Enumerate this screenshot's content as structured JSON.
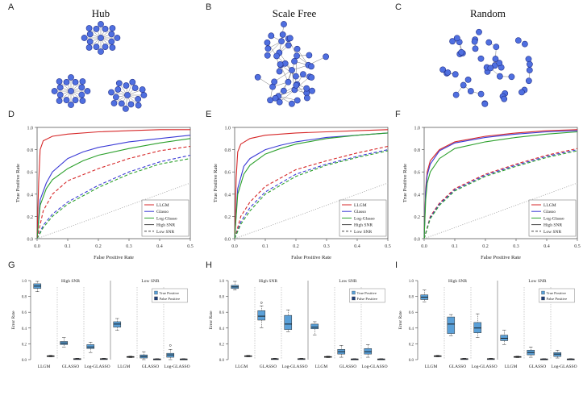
{
  "figure": {
    "panel_labels": [
      "A",
      "B",
      "C",
      "D",
      "E",
      "F",
      "G",
      "H",
      "I"
    ],
    "network_titles": [
      "Hub",
      "Scale Free",
      "Random"
    ],
    "node_color": "#4f6fe0",
    "node_edge_color": "#23318a",
    "edge_color": "#777777"
  },
  "chart_data": [
    {
      "panel": "D",
      "type": "line",
      "xlabel": "False Positive Rate",
      "ylabel": "True Positive Rate",
      "xlim": [
        0,
        0.5
      ],
      "ylim": [
        0,
        1.0
      ],
      "xticks": [
        "0.0",
        "0.1",
        "0.2",
        "0.3",
        "0.4",
        "0.5"
      ],
      "yticks": [
        "0.0",
        "0.2",
        "0.4",
        "0.6",
        "0.8",
        "1.0"
      ],
      "legend": [
        "LLGM",
        "Glasso",
        "Log-Glasso",
        "High SNR",
        "Low SNR"
      ],
      "series": [
        {
          "name": "LLGM high",
          "color": "#d62728",
          "dash": "solid",
          "x": [
            0,
            0.005,
            0.01,
            0.02,
            0.05,
            0.1,
            0.2,
            0.3,
            0.4,
            0.5
          ],
          "y": [
            0,
            0.5,
            0.8,
            0.88,
            0.92,
            0.94,
            0.96,
            0.97,
            0.98,
            0.98
          ]
        },
        {
          "name": "Glasso high",
          "color": "#3b3bd6",
          "dash": "solid",
          "x": [
            0,
            0.01,
            0.03,
            0.05,
            0.1,
            0.15,
            0.2,
            0.3,
            0.4,
            0.5
          ],
          "y": [
            0,
            0.35,
            0.5,
            0.6,
            0.72,
            0.78,
            0.82,
            0.87,
            0.9,
            0.93
          ]
        },
        {
          "name": "Log-Glasso high",
          "color": "#2ca02c",
          "dash": "solid",
          "x": [
            0,
            0.01,
            0.03,
            0.05,
            0.1,
            0.15,
            0.2,
            0.3,
            0.4,
            0.5
          ],
          "y": [
            0,
            0.3,
            0.45,
            0.53,
            0.63,
            0.7,
            0.75,
            0.81,
            0.86,
            0.9
          ]
        },
        {
          "name": "LLGM low",
          "color": "#d62728",
          "dash": "dashed",
          "x": [
            0,
            0.02,
            0.05,
            0.1,
            0.2,
            0.3,
            0.4,
            0.5
          ],
          "y": [
            0,
            0.25,
            0.4,
            0.52,
            0.63,
            0.72,
            0.79,
            0.83
          ]
        },
        {
          "name": "Glasso low",
          "color": "#3b3bd6",
          "dash": "dashed",
          "x": [
            0,
            0.02,
            0.05,
            0.1,
            0.2,
            0.3,
            0.4,
            0.5
          ],
          "y": [
            0,
            0.12,
            0.22,
            0.33,
            0.48,
            0.6,
            0.69,
            0.75
          ]
        },
        {
          "name": "Log-Glasso low",
          "color": "#2ca02c",
          "dash": "dashed",
          "x": [
            0,
            0.02,
            0.05,
            0.1,
            0.2,
            0.3,
            0.4,
            0.5
          ],
          "y": [
            0,
            0.1,
            0.2,
            0.31,
            0.46,
            0.58,
            0.67,
            0.72
          ]
        },
        {
          "name": "Random",
          "color": "#999999",
          "dash": "dotted",
          "x": [
            0,
            0.5
          ],
          "y": [
            0,
            0.5
          ]
        }
      ]
    },
    {
      "panel": "E",
      "type": "line",
      "xlabel": "False Positive Rate",
      "ylabel": "True Positive Rate",
      "xlim": [
        0,
        0.5
      ],
      "ylim": [
        0,
        1.0
      ],
      "xticks": [
        "0.0",
        "0.1",
        "0.2",
        "0.3",
        "0.4",
        "0.5"
      ],
      "yticks": [
        "0.0",
        "0.2",
        "0.4",
        "0.6",
        "0.8",
        "1.0"
      ],
      "legend": [
        "LLGM",
        "Glasso",
        "Log-Glasso",
        "High SNR",
        "Low SNR"
      ],
      "series": [
        {
          "name": "LLGM high",
          "color": "#d62728",
          "dash": "solid",
          "x": [
            0,
            0.005,
            0.01,
            0.02,
            0.05,
            0.1,
            0.2,
            0.3,
            0.4,
            0.5
          ],
          "y": [
            0,
            0.55,
            0.78,
            0.85,
            0.9,
            0.93,
            0.95,
            0.96,
            0.97,
            0.98
          ]
        },
        {
          "name": "Glasso high",
          "color": "#3b3bd6",
          "dash": "solid",
          "x": [
            0,
            0.01,
            0.03,
            0.05,
            0.1,
            0.15,
            0.2,
            0.3,
            0.4,
            0.5
          ],
          "y": [
            0,
            0.45,
            0.65,
            0.72,
            0.8,
            0.84,
            0.87,
            0.91,
            0.93,
            0.95
          ]
        },
        {
          "name": "Log-Glasso high",
          "color": "#2ca02c",
          "dash": "solid",
          "x": [
            0,
            0.01,
            0.03,
            0.05,
            0.1,
            0.15,
            0.2,
            0.3,
            0.4,
            0.5
          ],
          "y": [
            0,
            0.4,
            0.58,
            0.66,
            0.76,
            0.81,
            0.85,
            0.9,
            0.93,
            0.95
          ]
        },
        {
          "name": "LLGM low",
          "color": "#d62728",
          "dash": "dashed",
          "x": [
            0,
            0.02,
            0.05,
            0.1,
            0.2,
            0.3,
            0.4,
            0.5
          ],
          "y": [
            0,
            0.2,
            0.33,
            0.47,
            0.62,
            0.7,
            0.77,
            0.83
          ]
        },
        {
          "name": "Glasso low",
          "color": "#3b3bd6",
          "dash": "dashed",
          "x": [
            0,
            0.02,
            0.05,
            0.1,
            0.2,
            0.3,
            0.4,
            0.5
          ],
          "y": [
            0,
            0.15,
            0.28,
            0.42,
            0.58,
            0.67,
            0.74,
            0.8
          ]
        },
        {
          "name": "Log-Glasso low",
          "color": "#2ca02c",
          "dash": "dashed",
          "x": [
            0,
            0.02,
            0.05,
            0.1,
            0.2,
            0.3,
            0.4,
            0.5
          ],
          "y": [
            0,
            0.13,
            0.25,
            0.4,
            0.56,
            0.66,
            0.73,
            0.79
          ]
        },
        {
          "name": "Random",
          "color": "#999999",
          "dash": "dotted",
          "x": [
            0,
            0.5
          ],
          "y": [
            0,
            0.5
          ]
        }
      ]
    },
    {
      "panel": "F",
      "type": "line",
      "xlabel": "False Positive Rate",
      "ylabel": "True Positive Rate",
      "xlim": [
        0,
        0.5
      ],
      "ylim": [
        0,
        1.0
      ],
      "xticks": [
        "0.0",
        "0.1",
        "0.2",
        "0.3",
        "0.4",
        "0.5"
      ],
      "yticks": [
        "0.0",
        "0.2",
        "0.4",
        "0.6",
        "0.8",
        "1.0"
      ],
      "legend": [
        "LLGM",
        "Glasso",
        "Log-Glasso",
        "High SNR",
        "Low SNR"
      ],
      "series": [
        {
          "name": "LLGM high",
          "color": "#d62728",
          "dash": "solid",
          "x": [
            0,
            0.005,
            0.01,
            0.02,
            0.05,
            0.1,
            0.2,
            0.3,
            0.4,
            0.5
          ],
          "y": [
            0,
            0.45,
            0.6,
            0.7,
            0.8,
            0.87,
            0.92,
            0.95,
            0.97,
            0.98
          ]
        },
        {
          "name": "Glasso high",
          "color": "#3b3bd6",
          "dash": "solid",
          "x": [
            0,
            0.005,
            0.01,
            0.02,
            0.05,
            0.1,
            0.2,
            0.3,
            0.4,
            0.5
          ],
          "y": [
            0,
            0.42,
            0.57,
            0.67,
            0.79,
            0.86,
            0.91,
            0.94,
            0.96,
            0.97
          ]
        },
        {
          "name": "Log-Glasso high",
          "color": "#2ca02c",
          "dash": "solid",
          "x": [
            0,
            0.005,
            0.01,
            0.02,
            0.05,
            0.1,
            0.2,
            0.3,
            0.4,
            0.5
          ],
          "y": [
            0,
            0.35,
            0.5,
            0.6,
            0.72,
            0.81,
            0.87,
            0.91,
            0.94,
            0.96
          ]
        },
        {
          "name": "LLGM low",
          "color": "#d62728",
          "dash": "dashed",
          "x": [
            0,
            0.02,
            0.05,
            0.1,
            0.2,
            0.3,
            0.4,
            0.5
          ],
          "y": [
            0,
            0.2,
            0.32,
            0.45,
            0.58,
            0.67,
            0.75,
            0.81
          ]
        },
        {
          "name": "Glasso low",
          "color": "#3b3bd6",
          "dash": "dashed",
          "x": [
            0,
            0.02,
            0.05,
            0.1,
            0.2,
            0.3,
            0.4,
            0.5
          ],
          "y": [
            0,
            0.19,
            0.31,
            0.44,
            0.57,
            0.66,
            0.74,
            0.8
          ]
        },
        {
          "name": "Log-Glasso low",
          "color": "#2ca02c",
          "dash": "dashed",
          "x": [
            0,
            0.02,
            0.05,
            0.1,
            0.2,
            0.3,
            0.4,
            0.5
          ],
          "y": [
            0,
            0.18,
            0.3,
            0.43,
            0.56,
            0.65,
            0.73,
            0.79
          ]
        },
        {
          "name": "Random",
          "color": "#999999",
          "dash": "dotted",
          "x": [
            0,
            0.5
          ],
          "y": [
            0,
            0.5
          ]
        }
      ]
    },
    {
      "panel": "G",
      "type": "box",
      "ylabel": "Error Rate",
      "ylim": [
        0,
        1.0
      ],
      "yticks": [
        "0.0",
        "0.2",
        "0.4",
        "0.6",
        "0.8",
        "1.0"
      ],
      "group_labels": [
        "High SNR",
        "Low SNR"
      ],
      "categories": [
        "LLGM",
        "GLASSO",
        "Log-GLASSO",
        "LLGM",
        "GLASSO",
        "Log-GLASSO"
      ],
      "legend": [
        "True Positive",
        "False Positive"
      ],
      "tp_color": "#5aa0d8",
      "fp_color": "#1f3f78",
      "boxes": [
        {
          "kind": "tp",
          "min": 0.86,
          "q1": 0.9,
          "med": 0.93,
          "q3": 0.96,
          "max": 0.99,
          "out": []
        },
        {
          "kind": "fp",
          "min": 0.035,
          "q1": 0.04,
          "med": 0.045,
          "q3": 0.05,
          "max": 0.055,
          "out": []
        },
        {
          "kind": "tp",
          "min": 0.16,
          "q1": 0.19,
          "med": 0.21,
          "q3": 0.23,
          "max": 0.28,
          "out": []
        },
        {
          "kind": "fp",
          "min": 0.005,
          "q1": 0.008,
          "med": 0.01,
          "q3": 0.013,
          "max": 0.017,
          "out": []
        },
        {
          "kind": "tp",
          "min": 0.09,
          "q1": 0.14,
          "med": 0.16,
          "q3": 0.19,
          "max": 0.22,
          "out": []
        },
        {
          "kind": "fp",
          "min": 0.005,
          "q1": 0.008,
          "med": 0.01,
          "q3": 0.013,
          "max": 0.017,
          "out": []
        },
        {
          "kind": "tp",
          "min": 0.37,
          "q1": 0.41,
          "med": 0.45,
          "q3": 0.48,
          "max": 0.52,
          "out": []
        },
        {
          "kind": "fp",
          "min": 0.025,
          "q1": 0.03,
          "med": 0.035,
          "q3": 0.04,
          "max": 0.045,
          "out": []
        },
        {
          "kind": "tp",
          "min": 0.0,
          "q1": 0.02,
          "med": 0.04,
          "q3": 0.06,
          "max": 0.1,
          "out": []
        },
        {
          "kind": "fp",
          "min": 0.003,
          "q1": 0.005,
          "med": 0.007,
          "q3": 0.009,
          "max": 0.012,
          "out": []
        },
        {
          "kind": "tp",
          "min": 0.0,
          "q1": 0.03,
          "med": 0.06,
          "q3": 0.08,
          "max": 0.13,
          "out": [
            0.18
          ]
        },
        {
          "kind": "fp",
          "min": 0.003,
          "q1": 0.005,
          "med": 0.007,
          "q3": 0.009,
          "max": 0.012,
          "out": []
        }
      ]
    },
    {
      "panel": "H",
      "type": "box",
      "ylabel": "Error Rate",
      "ylim": [
        0,
        1.0
      ],
      "yticks": [
        "0.0",
        "0.2",
        "0.4",
        "0.6",
        "0.8",
        "1.0"
      ],
      "group_labels": [
        "High SNR",
        "Low SNR"
      ],
      "categories": [
        "LLGM",
        "GLASSO",
        "Log-GLASSO",
        "LLGM",
        "GLASSO",
        "Log-GLASSO"
      ],
      "legend": [
        "True Positive",
        "False Positive"
      ],
      "tp_color": "#5aa0d8",
      "fp_color": "#1f3f78",
      "boxes": [
        {
          "kind": "tp",
          "min": 0.88,
          "q1": 0.9,
          "med": 0.92,
          "q3": 0.94,
          "max": 0.99,
          "out": []
        },
        {
          "kind": "fp",
          "min": 0.035,
          "q1": 0.04,
          "med": 0.045,
          "q3": 0.05,
          "max": 0.055,
          "out": []
        },
        {
          "kind": "tp",
          "min": 0.4,
          "q1": 0.5,
          "med": 0.55,
          "q3": 0.62,
          "max": 0.68,
          "out": [
            0.72
          ]
        },
        {
          "kind": "fp",
          "min": 0.005,
          "q1": 0.008,
          "med": 0.01,
          "q3": 0.013,
          "max": 0.017,
          "out": []
        },
        {
          "kind": "tp",
          "min": 0.35,
          "q1": 0.38,
          "med": 0.45,
          "q3": 0.56,
          "max": 0.63,
          "out": []
        },
        {
          "kind": "fp",
          "min": 0.005,
          "q1": 0.008,
          "med": 0.01,
          "q3": 0.013,
          "max": 0.017,
          "out": []
        },
        {
          "kind": "tp",
          "min": 0.31,
          "q1": 0.39,
          "med": 0.41,
          "q3": 0.45,
          "max": 0.48,
          "out": []
        },
        {
          "kind": "fp",
          "min": 0.025,
          "q1": 0.03,
          "med": 0.035,
          "q3": 0.04,
          "max": 0.045,
          "out": []
        },
        {
          "kind": "tp",
          "min": 0.03,
          "q1": 0.07,
          "med": 0.1,
          "q3": 0.13,
          "max": 0.18,
          "out": []
        },
        {
          "kind": "fp",
          "min": 0.003,
          "q1": 0.005,
          "med": 0.007,
          "q3": 0.009,
          "max": 0.012,
          "out": []
        },
        {
          "kind": "tp",
          "min": 0.03,
          "q1": 0.07,
          "med": 0.1,
          "q3": 0.14,
          "max": 0.19,
          "out": []
        },
        {
          "kind": "fp",
          "min": 0.003,
          "q1": 0.005,
          "med": 0.007,
          "q3": 0.009,
          "max": 0.012,
          "out": []
        }
      ]
    },
    {
      "panel": "I",
      "type": "box",
      "ylabel": "Error Rate",
      "ylim": [
        0,
        1.0
      ],
      "yticks": [
        "0.0",
        "0.2",
        "0.4",
        "0.6",
        "0.8",
        "1.0"
      ],
      "group_labels": [
        "High SNR",
        "Low SNR"
      ],
      "categories": [
        "LLGM",
        "GLASSO",
        "Log-GLASSO",
        "LLGM",
        "GLASSO",
        "Log-GLASSO"
      ],
      "legend": [
        "True Positive",
        "False Positive"
      ],
      "tp_color": "#5aa0d8",
      "fp_color": "#1f3f78",
      "boxes": [
        {
          "kind": "tp",
          "min": 0.73,
          "q1": 0.76,
          "med": 0.79,
          "q3": 0.82,
          "max": 0.88,
          "out": []
        },
        {
          "kind": "fp",
          "min": 0.035,
          "q1": 0.04,
          "med": 0.045,
          "q3": 0.05,
          "max": 0.055,
          "out": []
        },
        {
          "kind": "tp",
          "min": 0.3,
          "q1": 0.33,
          "med": 0.45,
          "q3": 0.54,
          "max": 0.57,
          "out": []
        },
        {
          "kind": "fp",
          "min": 0.005,
          "q1": 0.008,
          "med": 0.01,
          "q3": 0.013,
          "max": 0.017,
          "out": []
        },
        {
          "kind": "tp",
          "min": 0.28,
          "q1": 0.34,
          "med": 0.4,
          "q3": 0.47,
          "max": 0.58,
          "out": []
        },
        {
          "kind": "fp",
          "min": 0.005,
          "q1": 0.008,
          "med": 0.01,
          "q3": 0.013,
          "max": 0.017,
          "out": []
        },
        {
          "kind": "tp",
          "min": 0.19,
          "q1": 0.24,
          "med": 0.27,
          "q3": 0.31,
          "max": 0.37,
          "out": []
        },
        {
          "kind": "fp",
          "min": 0.025,
          "q1": 0.03,
          "med": 0.035,
          "q3": 0.04,
          "max": 0.045,
          "out": []
        },
        {
          "kind": "tp",
          "min": 0.03,
          "q1": 0.06,
          "med": 0.09,
          "q3": 0.12,
          "max": 0.16,
          "out": []
        },
        {
          "kind": "fp",
          "min": 0.003,
          "q1": 0.005,
          "med": 0.007,
          "q3": 0.009,
          "max": 0.012,
          "out": []
        },
        {
          "kind": "tp",
          "min": 0.02,
          "q1": 0.04,
          "med": 0.07,
          "q3": 0.09,
          "max": 0.12,
          "out": []
        },
        {
          "kind": "fp",
          "min": 0.003,
          "q1": 0.005,
          "med": 0.007,
          "q3": 0.009,
          "max": 0.012,
          "out": []
        }
      ]
    }
  ]
}
